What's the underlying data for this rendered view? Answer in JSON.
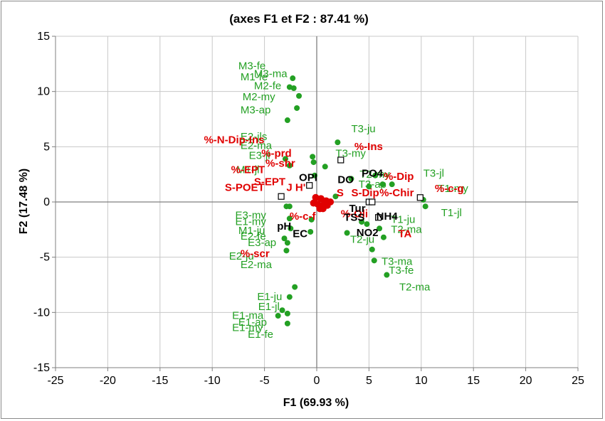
{
  "colors": {
    "observation": "#23a023",
    "variable_red": "#e00000",
    "variable_black": "#000000",
    "grid": "#c8c8c8",
    "axis": "#7f7f7f"
  },
  "chart_data": {
    "type": "scatter",
    "title": "(axes F1 et F2 : 87.41 %)",
    "xlabel": "F1 (69.93 %)",
    "ylabel": "F2 (17.48 %)",
    "xlim": [
      -25,
      25
    ],
    "ylim": [
      -15,
      15
    ],
    "xticks": [
      "-25",
      "-20",
      "-15",
      "-10",
      "-5",
      "0",
      "5",
      "10",
      "15",
      "20",
      "25"
    ],
    "yticks": [
      "15",
      "10",
      "5",
      "0",
      "-5",
      "-10",
      "-15"
    ],
    "grid": true,
    "observations": [
      {
        "x": -2.3,
        "y": 11.2
      },
      {
        "x": -2.6,
        "y": 10.4
      },
      {
        "x": -2.2,
        "y": 10.3
      },
      {
        "x": -1.7,
        "y": 9.6
      },
      {
        "x": -1.9,
        "y": 8.5
      },
      {
        "x": -2.8,
        "y": 7.4
      },
      {
        "x": 2.0,
        "y": 5.4
      },
      {
        "x": -0.4,
        "y": 4.1
      },
      {
        "x": -3.0,
        "y": 3.9
      },
      {
        "x": -2.6,
        "y": 3.3
      },
      {
        "x": 0.8,
        "y": 3.2
      },
      {
        "x": -0.2,
        "y": 2.4
      },
      {
        "x": -0.3,
        "y": 3.6
      },
      {
        "x": 3.3,
        "y": 2.1
      },
      {
        "x": 5.6,
        "y": 2.4
      },
      {
        "x": 5.0,
        "y": 1.4
      },
      {
        "x": 6.3,
        "y": 1.6
      },
      {
        "x": 7.2,
        "y": 1.6
      },
      {
        "x": 10.2,
        "y": 0.2
      },
      {
        "x": 10.4,
        "y": -0.4
      },
      {
        "x": 1.8,
        "y": 0.5
      },
      {
        "x": -2.6,
        "y": -0.4
      },
      {
        "x": -2.9,
        "y": -0.4
      },
      {
        "x": -0.5,
        "y": -1.6
      },
      {
        "x": -2.6,
        "y": -1.5
      },
      {
        "x": -2.5,
        "y": -2.4
      },
      {
        "x": -0.6,
        "y": -2.7
      },
      {
        "x": -3.1,
        "y": -3.3
      },
      {
        "x": -2.8,
        "y": -3.7
      },
      {
        "x": -2.9,
        "y": -4.4
      },
      {
        "x": 4.3,
        "y": -1.8
      },
      {
        "x": 4.8,
        "y": -2.0
      },
      {
        "x": 6.0,
        "y": -2.4
      },
      {
        "x": 6.4,
        "y": -3.2
      },
      {
        "x": 5.3,
        "y": -4.3
      },
      {
        "x": 2.9,
        "y": -2.8
      },
      {
        "x": 5.5,
        "y": -5.3
      },
      {
        "x": 6.7,
        "y": -6.6
      },
      {
        "x": -2.1,
        "y": -7.7
      },
      {
        "x": -2.6,
        "y": -8.6
      },
      {
        "x": -3.3,
        "y": -9.8
      },
      {
        "x": -2.8,
        "y": -10.1
      },
      {
        "x": -3.7,
        "y": -10.3
      },
      {
        "x": -2.8,
        "y": -11.0
      }
    ],
    "observation_labels": [
      {
        "text": "M3-fe",
        "x": -7.5,
        "y": 12.0
      },
      {
        "text": "M3-ma",
        "x": -6.0,
        "y": 11.3
      },
      {
        "text": "M1-fe",
        "x": -7.3,
        "y": 11.0
      },
      {
        "text": "M2-fe",
        "x": -6.0,
        "y": 10.2
      },
      {
        "text": "M2-my",
        "x": -7.1,
        "y": 9.2
      },
      {
        "text": "M3-ap",
        "x": -7.3,
        "y": 8.0
      },
      {
        "text": "T3-ju",
        "x": 3.3,
        "y": 6.3
      },
      {
        "text": "T3-my",
        "x": 1.8,
        "y": 4.1
      },
      {
        "text": "T3-jl",
        "x": 10.2,
        "y": 2.3
      },
      {
        "text": "T2-my",
        "x": 4.1,
        "y": 2.2
      },
      {
        "text": "T3-ap",
        "x": 4.0,
        "y": 1.3
      },
      {
        "text": "T1-my",
        "x": 11.6,
        "y": 0.9
      },
      {
        "text": "T1-jl",
        "x": 11.9,
        "y": -1.3
      },
      {
        "text": "T1-ju",
        "x": 7.1,
        "y": -1.9
      },
      {
        "text": "T2-ma",
        "x": 7.1,
        "y": -2.8
      },
      {
        "text": "T2-ju",
        "x": 3.2,
        "y": -3.7
      },
      {
        "text": "T3-ma",
        "x": 6.2,
        "y": -5.7
      },
      {
        "text": "T3-fe",
        "x": 6.9,
        "y": -6.5
      },
      {
        "text": "T2-ma",
        "x": 7.9,
        "y": -8.0
      },
      {
        "text": "E2-jls",
        "x": -7.3,
        "y": 5.6
      },
      {
        "text": "E2-ma",
        "x": -7.3,
        "y": 4.8
      },
      {
        "text": "E3-jl",
        "x": -6.5,
        "y": 3.9
      },
      {
        "text": "M1-jl",
        "x": -7.7,
        "y": 2.6
      },
      {
        "text": "E3-my",
        "x": -7.8,
        "y": -1.5
      },
      {
        "text": "E1-my",
        "x": -7.8,
        "y": -2.1
      },
      {
        "text": "M1-ju",
        "x": -7.5,
        "y": -2.9
      },
      {
        "text": "E2-fe",
        "x": -7.3,
        "y": -3.4
      },
      {
        "text": "E3-ap",
        "x": -6.6,
        "y": -4.0
      },
      {
        "text": "E2-ju",
        "x": -8.4,
        "y": -5.2
      },
      {
        "text": "E2-ma",
        "x": -7.3,
        "y": -6.0
      },
      {
        "text": "E1-ju",
        "x": -5.7,
        "y": -8.9
      },
      {
        "text": "E1-jl",
        "x": -5.6,
        "y": -9.8
      },
      {
        "text": "E1-ma",
        "x": -8.1,
        "y": -10.6
      },
      {
        "text": "E1-ap",
        "x": -7.5,
        "y": -11.2
      },
      {
        "text": "E1-my",
        "x": -8.1,
        "y": -11.7
      },
      {
        "text": "E1-fe",
        "x": -6.6,
        "y": -12.3
      }
    ],
    "variable_points": [
      {
        "x": 0.1,
        "y": -0.2
      },
      {
        "x": 0.4,
        "y": 0.3
      },
      {
        "x": 0.7,
        "y": -0.2
      },
      {
        "x": 0.9,
        "y": 0.1
      },
      {
        "x": 0.3,
        "y": -0.6
      },
      {
        "x": -0.1,
        "y": 0.4
      },
      {
        "x": 0.6,
        "y": -0.6
      },
      {
        "x": 1.0,
        "y": -0.3
      },
      {
        "x": 1.3,
        "y": 0.0
      },
      {
        "x": -0.3,
        "y": -0.1
      }
    ],
    "supplementary_markers": [
      {
        "x": -3.4,
        "y": 0.5
      },
      {
        "x": -0.7,
        "y": 1.5
      },
      {
        "x": 2.3,
        "y": 3.8
      },
      {
        "x": 5.0,
        "y": 0.0
      },
      {
        "x": 5.3,
        "y": 0.0
      },
      {
        "x": 9.9,
        "y": 0.4
      },
      {
        "x": 1.0,
        "y": -0.2
      },
      {
        "x": 5.9,
        "y": -1.4
      }
    ],
    "variable_labels_red": [
      {
        "text": "%-N-Dip-Ins",
        "x": -10.8,
        "y": 5.3
      },
      {
        "text": "%-prd",
        "x": -5.3,
        "y": 4.1
      },
      {
        "text": "%-shr",
        "x": -4.9,
        "y": 3.2
      },
      {
        "text": "%-EPT",
        "x": -8.2,
        "y": 2.6
      },
      {
        "text": "S-EPT",
        "x": -6.0,
        "y": 1.5
      },
      {
        "text": "S-POET",
        "x": -8.8,
        "y": 1.0
      },
      {
        "text": "J H'",
        "x": -2.9,
        "y": 1.0
      },
      {
        "text": "%-Ins",
        "x": 3.6,
        "y": 4.7
      },
      {
        "text": "%-Dip",
        "x": 6.4,
        "y": 2.0
      },
      {
        "text": "S",
        "x": 1.9,
        "y": 0.5
      },
      {
        "text": "S-Dip",
        "x": 3.3,
        "y": 0.5
      },
      {
        "text": "%-Chir",
        "x": 6.0,
        "y": 0.5
      },
      {
        "text": "%-c-g",
        "x": 11.3,
        "y": 0.9
      },
      {
        "text": "%-c-f",
        "x": -2.6,
        "y": -1.6
      },
      {
        "text": "%-Oli",
        "x": 2.3,
        "y": -1.4
      },
      {
        "text": "TA",
        "x": 7.8,
        "y": -3.2
      },
      {
        "text": "%-scr",
        "x": -7.3,
        "y": -5.0
      }
    ],
    "variable_labels_black": [
      {
        "text": "OPI",
        "x": -1.7,
        "y": 1.9
      },
      {
        "text": "DO",
        "x": 2.0,
        "y": 1.7
      },
      {
        "text": "PO4",
        "x": 4.3,
        "y": 2.3
      },
      {
        "text": "Tur",
        "x": 3.1,
        "y": -0.9
      },
      {
        "text": "TSS",
        "x": 2.6,
        "y": -1.7
      },
      {
        "text": "NH4",
        "x": 5.7,
        "y": -1.6
      },
      {
        "text": "NO2",
        "x": 3.8,
        "y": -3.1
      },
      {
        "text": "pH",
        "x": -3.8,
        "y": -2.5
      },
      {
        "text": "EC",
        "x": -2.3,
        "y": -3.2
      }
    ]
  }
}
